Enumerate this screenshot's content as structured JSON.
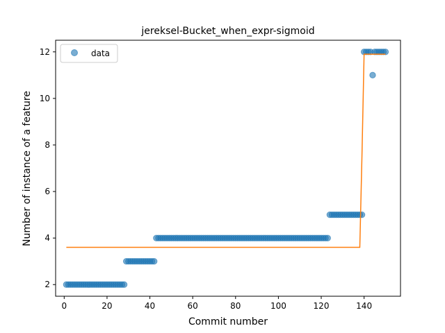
{
  "chart_data": {
    "type": "scatter",
    "title": "jereksel-Bucket_when_expr-sigmoid",
    "xlabel": "Commit number",
    "ylabel": "Number of instance of a feature",
    "xlim": [
      -4,
      157
    ],
    "ylim": [
      1.5,
      12.5
    ],
    "xticks": [
      0,
      20,
      40,
      60,
      80,
      100,
      120,
      140
    ],
    "yticks": [
      2,
      4,
      6,
      8,
      10,
      12
    ],
    "grid": false,
    "legend": {
      "placement": "top-left",
      "entries": [
        "data"
      ]
    },
    "colors": {
      "data": "#1f77b4",
      "fit": "#ff7f0e"
    },
    "series": [
      {
        "name": "data",
        "kind": "scatter",
        "segments": [
          {
            "x_from": 1,
            "x_to": 28,
            "y": 2
          },
          {
            "x_from": 29,
            "x_to": 42,
            "y": 3
          },
          {
            "x_from": 43,
            "x_to": 123,
            "y": 4
          },
          {
            "x_from": 124,
            "x_to": 139,
            "y": 5
          },
          {
            "x_from": 140,
            "x_to": 143,
            "y": 12
          },
          {
            "x_from": 145,
            "x_to": 150,
            "y": 12
          }
        ],
        "extra_points": [
          {
            "x": 144,
            "y": 11
          }
        ]
      },
      {
        "kind": "line",
        "points": [
          {
            "x": 1,
            "y": 3.6
          },
          {
            "x": 138,
            "y": 3.6
          },
          {
            "x": 139,
            "y": 7.5
          },
          {
            "x": 140,
            "y": 11.9
          },
          {
            "x": 150,
            "y": 11.9
          }
        ]
      }
    ]
  }
}
